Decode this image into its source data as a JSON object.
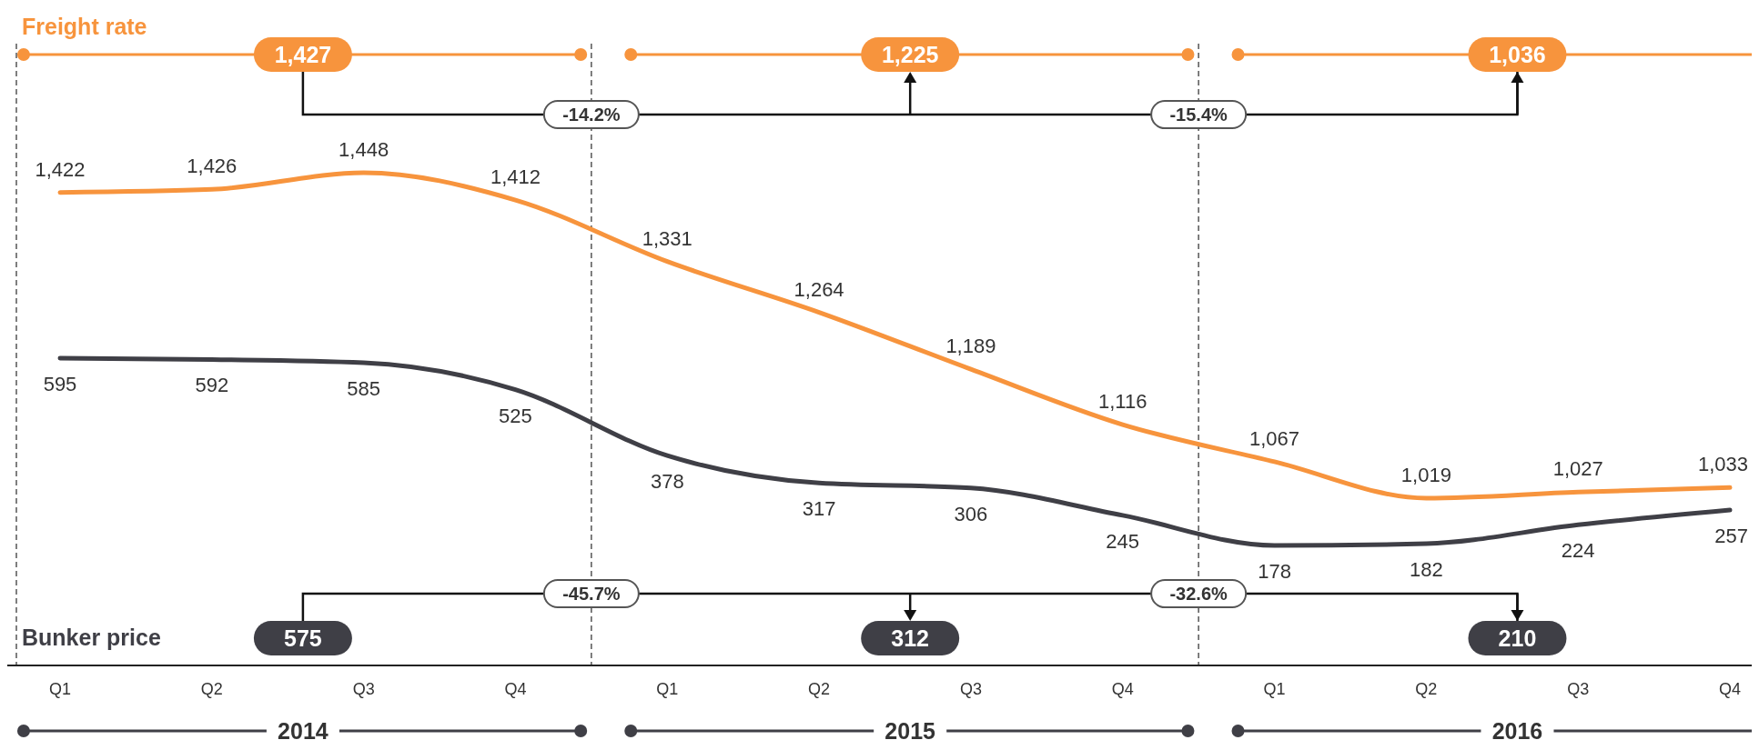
{
  "chart_data": {
    "type": "line",
    "categories": [
      "Q1",
      "Q2",
      "Q3",
      "Q4",
      "Q1",
      "Q2",
      "Q3",
      "Q4",
      "Q1",
      "Q2",
      "Q3",
      "Q4"
    ],
    "series": [
      {
        "name": "Freight rate",
        "color": "#f7943d",
        "values": [
          1422,
          1426,
          1448,
          1412,
          1331,
          1264,
          1189,
          1116,
          1067,
          1019,
          1027,
          1033
        ],
        "value_labels": [
          "1,422",
          "1,426",
          "1,448",
          "1,412",
          "1,331",
          "1,264",
          "1,189",
          "1,116",
          "1,067",
          "1,019",
          "1,027",
          "1,033"
        ]
      },
      {
        "name": "Bunker price",
        "color": "#3f3f46",
        "axis": "y2",
        "values": [
          595,
          592,
          585,
          525,
          378,
          317,
          306,
          245,
          178,
          182,
          224,
          257
        ],
        "value_labels": [
          "595",
          "592",
          "585",
          "525",
          "378",
          "317",
          "306",
          "245",
          "178",
          "182",
          "224",
          "257"
        ]
      }
    ],
    "tick_labels": "x",
    "annotations": [
      "1,427",
      "1,225",
      "1,036",
      "-14.2%",
      "-15.4%",
      "575",
      "312",
      "210",
      "-45.7%",
      "-32.6%",
      "2014",
      "2015",
      "2016"
    ]
  }
}
